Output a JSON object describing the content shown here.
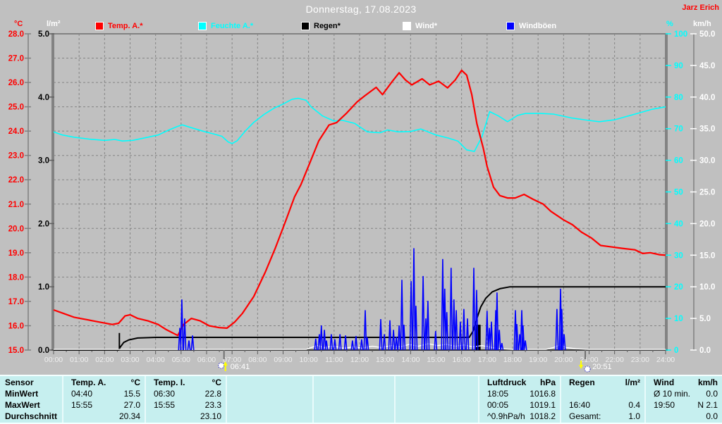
{
  "header": {
    "title": "Donnerstag, 17.08.2023",
    "author": "Jarz Erich",
    "author_color": "#ff0000"
  },
  "axes_units": {
    "temp": "°C",
    "rain": "l/m²",
    "humidity": "%",
    "wind": "km/h"
  },
  "legend": {
    "items": [
      {
        "label": "Temp. A.*",
        "color": "#ff0000",
        "text_color": "#ff0000"
      },
      {
        "label": "Feuchte A.*",
        "color": "#00ffff",
        "text_color": "#00ffff"
      },
      {
        "label": "Regen*",
        "color": "#000000",
        "text_color": "#000000"
      },
      {
        "label": "Wind*",
        "color": "#ffffff",
        "text_color": "#ffffff"
      },
      {
        "label": "Windböen",
        "color": "#0000ff",
        "text_color": "#ffffff"
      }
    ]
  },
  "chart_data": {
    "type": "line",
    "title": "Donnerstag, 17.08.2023",
    "grid": true,
    "x_axis": {
      "range": [
        0,
        24
      ],
      "ticks": [
        "00:00",
        "01:00",
        "02:00",
        "03:00",
        "04:00",
        "05:00",
        "06:00",
        "07:00",
        "08:00",
        "09:00",
        "10:00",
        "11:00",
        "12:00",
        "13:00",
        "14:00",
        "15:00",
        "16:00",
        "17:00",
        "18:00",
        "19:00",
        "20:00",
        "21:00",
        "22:00",
        "23:00",
        "24:00"
      ]
    },
    "y_axes": [
      {
        "id": "temp",
        "unit": "°C",
        "range": [
          15,
          28
        ],
        "tick_step": 1,
        "decimals": 1,
        "color": "#ff0000",
        "unit_color": "#ff0000",
        "side": "left"
      },
      {
        "id": "rain",
        "unit": "l/m²",
        "range": [
          0,
          5
        ],
        "tick_step": 1,
        "decimals": 1,
        "color": "#000000",
        "unit_color": "#ffffff",
        "side": "left"
      },
      {
        "id": "humidity",
        "unit": "%",
        "range": [
          0,
          100
        ],
        "tick_step": 10,
        "decimals": 0,
        "color": "#00ffff",
        "unit_color": "#00ffff",
        "side": "right"
      },
      {
        "id": "wind",
        "unit": "km/h",
        "range": [
          0,
          50
        ],
        "tick_step": 5,
        "decimals": 1,
        "color": "#ffffff",
        "unit_color": "#ffffff",
        "side": "right"
      }
    ],
    "series": [
      {
        "name": "Feuchte A.*",
        "axis": "humidity",
        "color": "#00ffff",
        "width": 1.6,
        "kind": "line",
        "points": [
          [
            0,
            69.0
          ],
          [
            0.35,
            68.0
          ],
          [
            0.8,
            67.3
          ],
          [
            1.4,
            66.7
          ],
          [
            2.0,
            66.3
          ],
          [
            2.4,
            66.6
          ],
          [
            2.7,
            66.1
          ],
          [
            3.1,
            66.3
          ],
          [
            3.7,
            67.3
          ],
          [
            4.1,
            68.0
          ],
          [
            4.5,
            69.5
          ],
          [
            4.85,
            70.7
          ],
          [
            5.05,
            71.2
          ],
          [
            5.45,
            70.2
          ],
          [
            5.9,
            69.1
          ],
          [
            6.25,
            68.4
          ],
          [
            6.6,
            67.6
          ],
          [
            6.85,
            65.8
          ],
          [
            7.0,
            65.3
          ],
          [
            7.2,
            66.2
          ],
          [
            7.5,
            69.1
          ],
          [
            7.85,
            72.0
          ],
          [
            8.25,
            74.5
          ],
          [
            8.65,
            76.5
          ],
          [
            9.0,
            77.8
          ],
          [
            9.35,
            79.3
          ],
          [
            9.6,
            79.6
          ],
          [
            9.9,
            79.0
          ],
          [
            10.1,
            76.9
          ],
          [
            10.55,
            74.0
          ],
          [
            11.0,
            72.4
          ],
          [
            11.3,
            72.7
          ],
          [
            11.8,
            71.7
          ],
          [
            12.3,
            69.0
          ],
          [
            12.8,
            68.7
          ],
          [
            13.1,
            69.6
          ],
          [
            13.5,
            69.0
          ],
          [
            14.0,
            69.1
          ],
          [
            14.4,
            69.9
          ],
          [
            15.0,
            68.0
          ],
          [
            15.5,
            67.0
          ],
          [
            15.85,
            66.1
          ],
          [
            16.2,
            63.3
          ],
          [
            16.5,
            62.8
          ],
          [
            16.8,
            67.5
          ],
          [
            17.1,
            75.4
          ],
          [
            17.45,
            74.0
          ],
          [
            17.8,
            72.2
          ],
          [
            18.2,
            74.2
          ],
          [
            18.5,
            74.8
          ],
          [
            19.1,
            74.8
          ],
          [
            19.6,
            74.6
          ],
          [
            20.3,
            73.4
          ],
          [
            21.0,
            72.6
          ],
          [
            21.4,
            72.2
          ],
          [
            22.0,
            72.8
          ],
          [
            22.8,
            74.6
          ],
          [
            23.5,
            76.2
          ],
          [
            24,
            76.9
          ]
        ]
      },
      {
        "name": "Regen*",
        "axis": "rain",
        "color": "#000000",
        "width": 2,
        "kind": "line",
        "points": [
          [
            0,
            0
          ],
          [
            2.55,
            0
          ],
          [
            2.62,
            0.05
          ],
          [
            2.75,
            0.12
          ],
          [
            2.95,
            0.16
          ],
          [
            3.3,
            0.19
          ],
          [
            4,
            0.2
          ],
          [
            16.3,
            0.2
          ],
          [
            16.45,
            0.3
          ],
          [
            16.6,
            0.5
          ],
          [
            16.75,
            0.68
          ],
          [
            16.95,
            0.82
          ],
          [
            17.2,
            0.92
          ],
          [
            17.5,
            0.97
          ],
          [
            17.9,
            1.0
          ],
          [
            24,
            1.0
          ]
        ]
      },
      {
        "name": "Temp. A.*",
        "axis": "temp",
        "color": "#ff0000",
        "width": 2.2,
        "kind": "line",
        "points": [
          [
            0,
            16.65
          ],
          [
            0.4,
            16.5
          ],
          [
            0.8,
            16.35
          ],
          [
            1.3,
            16.25
          ],
          [
            1.8,
            16.15
          ],
          [
            2.3,
            16.05
          ],
          [
            2.55,
            16.1
          ],
          [
            2.8,
            16.4
          ],
          [
            3.0,
            16.45
          ],
          [
            3.3,
            16.3
          ],
          [
            3.7,
            16.2
          ],
          [
            4.1,
            16.05
          ],
          [
            4.4,
            15.85
          ],
          [
            4.87,
            15.6
          ],
          [
            5.1,
            16.05
          ],
          [
            5.4,
            16.3
          ],
          [
            5.75,
            16.2
          ],
          [
            6.1,
            16.0
          ],
          [
            6.5,
            15.92
          ],
          [
            6.8,
            15.9
          ],
          [
            7.1,
            16.15
          ],
          [
            7.4,
            16.5
          ],
          [
            7.85,
            17.2
          ],
          [
            8.3,
            18.2
          ],
          [
            8.7,
            19.2
          ],
          [
            9.1,
            20.3
          ],
          [
            9.45,
            21.3
          ],
          [
            9.7,
            21.8
          ],
          [
            10.05,
            22.7
          ],
          [
            10.4,
            23.6
          ],
          [
            10.8,
            24.25
          ],
          [
            11.1,
            24.35
          ],
          [
            11.5,
            24.75
          ],
          [
            11.9,
            25.2
          ],
          [
            12.2,
            25.45
          ],
          [
            12.65,
            25.8
          ],
          [
            12.9,
            25.5
          ],
          [
            13.25,
            26.0
          ],
          [
            13.55,
            26.4
          ],
          [
            13.8,
            26.1
          ],
          [
            14.05,
            25.9
          ],
          [
            14.45,
            26.15
          ],
          [
            14.75,
            25.9
          ],
          [
            15.1,
            26.05
          ],
          [
            15.45,
            25.78
          ],
          [
            15.75,
            26.1
          ],
          [
            16.0,
            26.5
          ],
          [
            16.2,
            26.3
          ],
          [
            16.4,
            25.5
          ],
          [
            16.6,
            24.3
          ],
          [
            16.85,
            23.3
          ],
          [
            17.0,
            22.55
          ],
          [
            17.25,
            21.7
          ],
          [
            17.5,
            21.35
          ],
          [
            17.8,
            21.25
          ],
          [
            18.1,
            21.25
          ],
          [
            18.45,
            21.4
          ],
          [
            18.8,
            21.2
          ],
          [
            19.2,
            21.0
          ],
          [
            19.5,
            20.7
          ],
          [
            20.0,
            20.35
          ],
          [
            20.35,
            20.15
          ],
          [
            20.7,
            19.85
          ],
          [
            21.1,
            19.6
          ],
          [
            21.45,
            19.3
          ],
          [
            21.8,
            19.25
          ],
          [
            22.3,
            19.18
          ],
          [
            22.8,
            19.12
          ],
          [
            23.1,
            18.97
          ],
          [
            23.4,
            19.0
          ],
          [
            23.75,
            18.92
          ],
          [
            24,
            18.9
          ]
        ]
      },
      {
        "name": "Wind*",
        "axis": "wind",
        "color": "#ffffff",
        "width": 1.4,
        "kind": "line",
        "points": [
          [
            0,
            0.1
          ],
          [
            9.9,
            0.1
          ],
          [
            10.1,
            0.4
          ],
          [
            10.35,
            0.7
          ],
          [
            10.6,
            0.4
          ],
          [
            11.0,
            0.6
          ],
          [
            11.35,
            0.3
          ],
          [
            11.8,
            0.5
          ],
          [
            12.1,
            0.3
          ],
          [
            12.5,
            0.6
          ],
          [
            12.85,
            0.4
          ],
          [
            13.25,
            0.7
          ],
          [
            13.6,
            0.5
          ],
          [
            13.95,
            0.9
          ],
          [
            14.3,
            0.6
          ],
          [
            14.7,
            1.0
          ],
          [
            15.05,
            0.7
          ],
          [
            15.4,
            0.9
          ],
          [
            15.75,
            0.6
          ],
          [
            16.1,
            0.8
          ],
          [
            16.45,
            0.5
          ],
          [
            16.8,
            0.7
          ],
          [
            17.2,
            0.4
          ],
          [
            17.6,
            0.2
          ],
          [
            18.0,
            0.1
          ],
          [
            19.3,
            0.1
          ],
          [
            19.6,
            0.4
          ],
          [
            19.85,
            0.8
          ],
          [
            20.1,
            0.4
          ],
          [
            20.5,
            0.2
          ],
          [
            21.0,
            0.1
          ],
          [
            24,
            0.1
          ]
        ]
      },
      {
        "name": "Windböen",
        "axis": "wind",
        "color": "#0000ff",
        "width": 1.6,
        "kind": "spikes",
        "points": [
          [
            4.95,
            3.5
          ],
          [
            5.03,
            8
          ],
          [
            5.14,
            5
          ],
          [
            5.31,
            1.5
          ],
          [
            5.45,
            2.3
          ],
          [
            10.28,
            1.8
          ],
          [
            10.42,
            2.5
          ],
          [
            10.5,
            3.9
          ],
          [
            10.62,
            3.2
          ],
          [
            10.7,
            1.5
          ],
          [
            10.89,
            2.5
          ],
          [
            11.03,
            1.7
          ],
          [
            11.23,
            2.5
          ],
          [
            11.45,
            2.3
          ],
          [
            11.72,
            1.5
          ],
          [
            11.86,
            2.2
          ],
          [
            12.08,
            1.7
          ],
          [
            12.22,
            6.3
          ],
          [
            12.3,
            2.0
          ],
          [
            12.83,
            4.9
          ],
          [
            12.97,
            2.5
          ],
          [
            13.19,
            4.7
          ],
          [
            13.33,
            3.2
          ],
          [
            13.44,
            2.1
          ],
          [
            13.55,
            3.9
          ],
          [
            13.66,
            11.1
          ],
          [
            13.74,
            4.0
          ],
          [
            14.02,
            10.9
          ],
          [
            14.13,
            16.1
          ],
          [
            14.21,
            7.0
          ],
          [
            14.49,
            11.7
          ],
          [
            14.6,
            5.0
          ],
          [
            14.68,
            7.8
          ],
          [
            14.98,
            3.0
          ],
          [
            15.26,
            14.4
          ],
          [
            15.34,
            9.7
          ],
          [
            15.42,
            6.0
          ],
          [
            15.59,
            13.0
          ],
          [
            15.7,
            8.0
          ],
          [
            15.79,
            6.3
          ],
          [
            15.95,
            4.5
          ],
          [
            16.09,
            6.5
          ],
          [
            16.23,
            5.0
          ],
          [
            16.48,
            13.0
          ],
          [
            16.59,
            9.5
          ],
          [
            17.0,
            6.2
          ],
          [
            17.09,
            3.5
          ],
          [
            17.17,
            4.5
          ],
          [
            17.34,
            6.3
          ],
          [
            17.39,
            9.1
          ],
          [
            17.48,
            3.2
          ],
          [
            17.58,
            1.1
          ],
          [
            18.11,
            6.3
          ],
          [
            18.17,
            4.1
          ],
          [
            18.28,
            2.5
          ],
          [
            18.36,
            6.3
          ],
          [
            18.41,
            3.9
          ],
          [
            18.5,
            1.5
          ],
          [
            19.74,
            6.5
          ],
          [
            19.88,
            9.7
          ],
          [
            19.93,
            6.5
          ],
          [
            20.02,
            2.5
          ]
        ]
      }
    ],
    "rain_bars": [
      {
        "hour": 2.58,
        "value": 0.27,
        "width": 2
      },
      {
        "hour": 16.65,
        "value": 0.4,
        "width": 7
      }
    ],
    "sun_markers": [
      {
        "type": "sunrise",
        "time": "06:41",
        "hour": 6.683
      },
      {
        "type": "sunset",
        "time": "20:51",
        "hour": 20.85
      }
    ]
  },
  "table": {
    "row_labels": [
      "Sensor",
      "MinWert",
      "MaxWert",
      "Durchschnitt"
    ],
    "columns": [
      {
        "name": "Temp. A.",
        "unit": "°C",
        "min_time": "04:40",
        "min_val": "15.5",
        "max_time": "15:55",
        "max_val": "27.0",
        "avg_label": "",
        "avg": "20.34"
      },
      {
        "name": "Temp. I.",
        "unit": "°C",
        "min_time": "06:30",
        "min_val": "22.8",
        "max_time": "15:55",
        "max_val": "23.3",
        "avg_label": "",
        "avg": "23.10"
      },
      {
        "name": "",
        "unit": "",
        "min_time": "",
        "min_val": "",
        "max_time": "",
        "max_val": "",
        "avg_label": "",
        "avg": ""
      },
      {
        "name": "",
        "unit": "",
        "min_time": "",
        "min_val": "",
        "max_time": "",
        "max_val": "",
        "avg_label": "",
        "avg": ""
      },
      {
        "name": "",
        "unit": "",
        "min_time": "",
        "min_val": "",
        "max_time": "",
        "max_val": "",
        "avg_label": "",
        "avg": ""
      },
      {
        "name": "Luftdruck",
        "unit": "hPa",
        "min_time": "18:05",
        "min_val": "1016.8",
        "max_time": "00:05",
        "max_val": "1019.1",
        "avg_label": "^0.9hPa/h",
        "avg": "1018.2"
      },
      {
        "name": "Regen",
        "unit": "l/m²",
        "min_time": "",
        "min_val": "",
        "max_time": "16:40",
        "max_val": "0.4",
        "avg_label": "Gesamt:",
        "avg": "1.0"
      },
      {
        "name": "Wind",
        "unit": "km/h",
        "min_time": "Ø 10 min.",
        "min_val": "0.0",
        "max_time": "19:50",
        "max_val": "N 2.1",
        "avg_label": "",
        "avg": "0.0"
      }
    ]
  }
}
